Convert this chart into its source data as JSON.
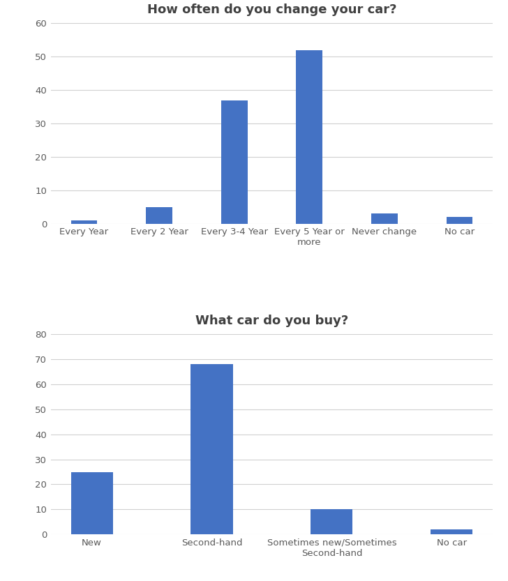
{
  "chart1": {
    "title": "How often do you change your car?",
    "categories": [
      "Every Year",
      "Every 2 Year",
      "Every 3-4 Year",
      "Every 5 Year or\nmore",
      "Never change",
      "No car"
    ],
    "values": [
      1,
      5,
      37,
      52,
      3,
      2
    ],
    "ylim": [
      0,
      60
    ],
    "yticks": [
      0,
      10,
      20,
      30,
      40,
      50,
      60
    ],
    "bar_color": "#4472C4"
  },
  "chart2": {
    "title": "What car do you buy?",
    "categories": [
      "New",
      "Second-hand",
      "Sometimes new/Sometimes\nSecond-hand",
      "No car"
    ],
    "values": [
      25,
      68,
      10,
      2
    ],
    "ylim": [
      0,
      80
    ],
    "yticks": [
      0,
      10,
      20,
      30,
      40,
      50,
      60,
      70,
      80
    ],
    "bar_color": "#4472C4"
  },
  "title_fontsize": 13,
  "title_color": "#404040",
  "tick_color": "#595959",
  "tick_fontsize": 9.5,
  "background_color": "#FFFFFF",
  "grid_color": "#D0D0D0",
  "bar_width": 0.35
}
